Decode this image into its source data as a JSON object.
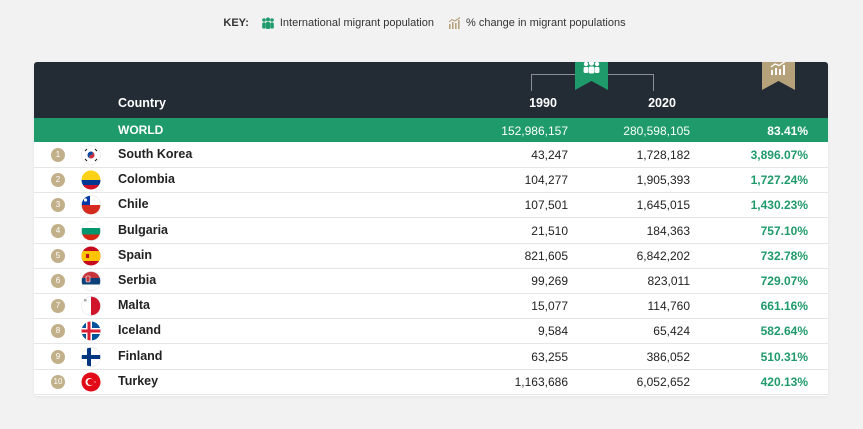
{
  "key": {
    "title": "KEY:",
    "item1_label": "International migrant population",
    "item2_label": "% change in migrant populations",
    "item1_icon": "people-icon",
    "item2_icon": "growth-chart-icon"
  },
  "colors": {
    "header_bg": "#232b35",
    "world_bg": "#1f9a6b",
    "accent_green": "#1f9a6b",
    "accent_gold": "#b5a27a",
    "rank_badge": "#c2b08a"
  },
  "header": {
    "country_label": "Country",
    "y1990_label": "1990",
    "y2020_label": "2020"
  },
  "world": {
    "name": "WORLD",
    "v1990": "152,986,157",
    "v2020": "280,598,105",
    "pct": "83.41%"
  },
  "chart_data": {
    "type": "table",
    "columns": [
      "Country",
      "1990",
      "2020",
      "% change"
    ],
    "rows": [
      {
        "rank": "1",
        "country": "South Korea",
        "flag": "south-korea-flag-icon",
        "v1990": "43,247",
        "v2020": "1,728,182",
        "pct": "3,896.07%"
      },
      {
        "rank": "2",
        "country": "Colombia",
        "flag": "colombia-flag-icon",
        "v1990": "104,277",
        "v2020": "1,905,393",
        "pct": "1,727.24%"
      },
      {
        "rank": "3",
        "country": "Chile",
        "flag": "chile-flag-icon",
        "v1990": "107,501",
        "v2020": "1,645,015",
        "pct": "1,430.23%"
      },
      {
        "rank": "4",
        "country": "Bulgaria",
        "flag": "bulgaria-flag-icon",
        "v1990": "21,510",
        "v2020": "184,363",
        "pct": "757.10%"
      },
      {
        "rank": "5",
        "country": "Spain",
        "flag": "spain-flag-icon",
        "v1990": "821,605",
        "v2020": "6,842,202",
        "pct": "732.78%"
      },
      {
        "rank": "6",
        "country": "Serbia",
        "flag": "serbia-flag-icon",
        "v1990": "99,269",
        "v2020": "823,011",
        "pct": "729.07%"
      },
      {
        "rank": "7",
        "country": "Malta",
        "flag": "malta-flag-icon",
        "v1990": "15,077",
        "v2020": "114,760",
        "pct": "661.16%"
      },
      {
        "rank": "8",
        "country": "Iceland",
        "flag": "iceland-flag-icon",
        "v1990": "9,584",
        "v2020": "65,424",
        "pct": "582.64%"
      },
      {
        "rank": "9",
        "country": "Finland",
        "flag": "finland-flag-icon",
        "v1990": "63,255",
        "v2020": "386,052",
        "pct": "510.31%"
      },
      {
        "rank": "10",
        "country": "Turkey",
        "flag": "turkey-flag-icon",
        "v1990": "1,163,686",
        "v2020": "6,052,652",
        "pct": "420.13%"
      }
    ]
  }
}
